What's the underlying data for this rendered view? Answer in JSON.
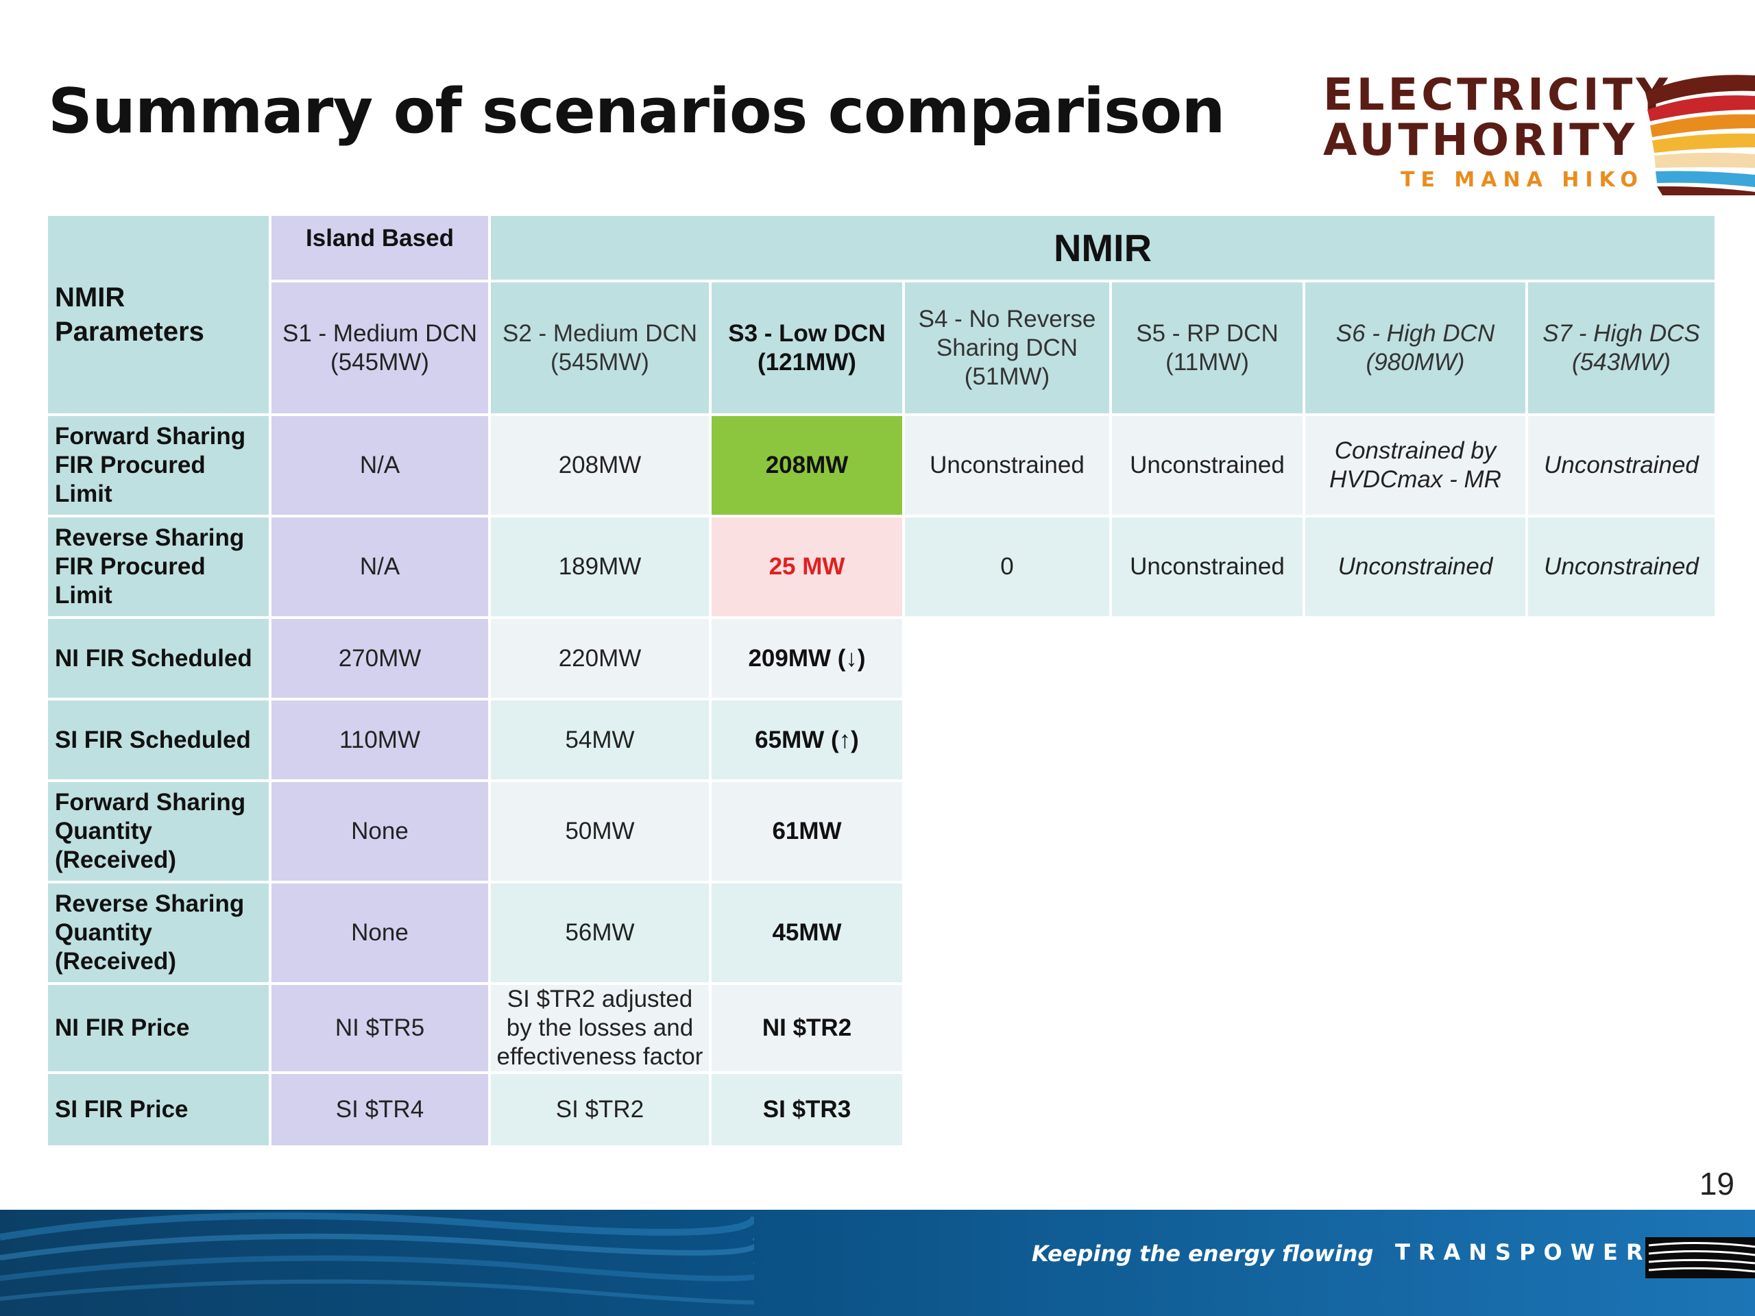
{
  "title": "Summary of scenarios comparison",
  "logo": {
    "line1": "ELECTRICITY",
    "line2": "AUTHORITY",
    "line3": "TE MANA HIKO"
  },
  "table": {
    "corner": "NMIR Parameters",
    "island_group": "Island Based",
    "nmir_group": "NMIR",
    "scenarios": [
      "S1 - Medium DCN (545MW)",
      "S2 - Medium DCN (545MW)",
      "S3 - Low DCN (121MW)",
      "S4 - No Reverse Sharing DCN (51MW)",
      "S5 - RP DCN (11MW)",
      "S6 - High DCN (980MW)",
      "S7 - High DCS (543MW)"
    ],
    "rows": [
      {
        "param": "Forward Sharing FIR Procured Limit",
        "values": [
          "N/A",
          "208MW",
          "208MW",
          "Unconstrained",
          "Unconstrained",
          "Constrained by HVDCmax - MR",
          "Unconstrained"
        ]
      },
      {
        "param": "Reverse Sharing FIR Procured Limit",
        "values": [
          "N/A",
          "189MW",
          "25 MW",
          "0",
          "Unconstrained",
          "Unconstrained",
          "Unconstrained"
        ]
      },
      {
        "param": "NI FIR Scheduled",
        "values": [
          "270MW",
          "220MW",
          "209MW (↓)"
        ]
      },
      {
        "param": "SI FIR Scheduled",
        "values": [
          "110MW",
          "54MW",
          "65MW (↑)"
        ]
      },
      {
        "param": "Forward Sharing Quantity (Received)",
        "values": [
          "None",
          "50MW",
          "61MW"
        ]
      },
      {
        "param": "Reverse Sharing Quantity (Received)",
        "values": [
          "None",
          "56MW",
          "45MW"
        ]
      },
      {
        "param": "NI FIR Price",
        "values": [
          "NI $TR5",
          "SI $TR2 adjusted by the losses and effectiveness factor",
          "NI $TR2"
        ]
      },
      {
        "param": "SI FIR Price",
        "values": [
          "SI $TR4",
          "SI $TR2",
          "SI $TR3"
        ]
      }
    ]
  },
  "page_number": "19",
  "footer": {
    "tagline": "Keeping the energy flowing",
    "brand": "TRANSPOWER"
  },
  "colors": {
    "teal": "#bfe0e1",
    "lavender": "#d3d1ee",
    "highlight_green": "#8cc63e",
    "highlight_pink": "#fae0e1",
    "alert_red": "#e02020",
    "footer_blue": "#0b5286"
  }
}
